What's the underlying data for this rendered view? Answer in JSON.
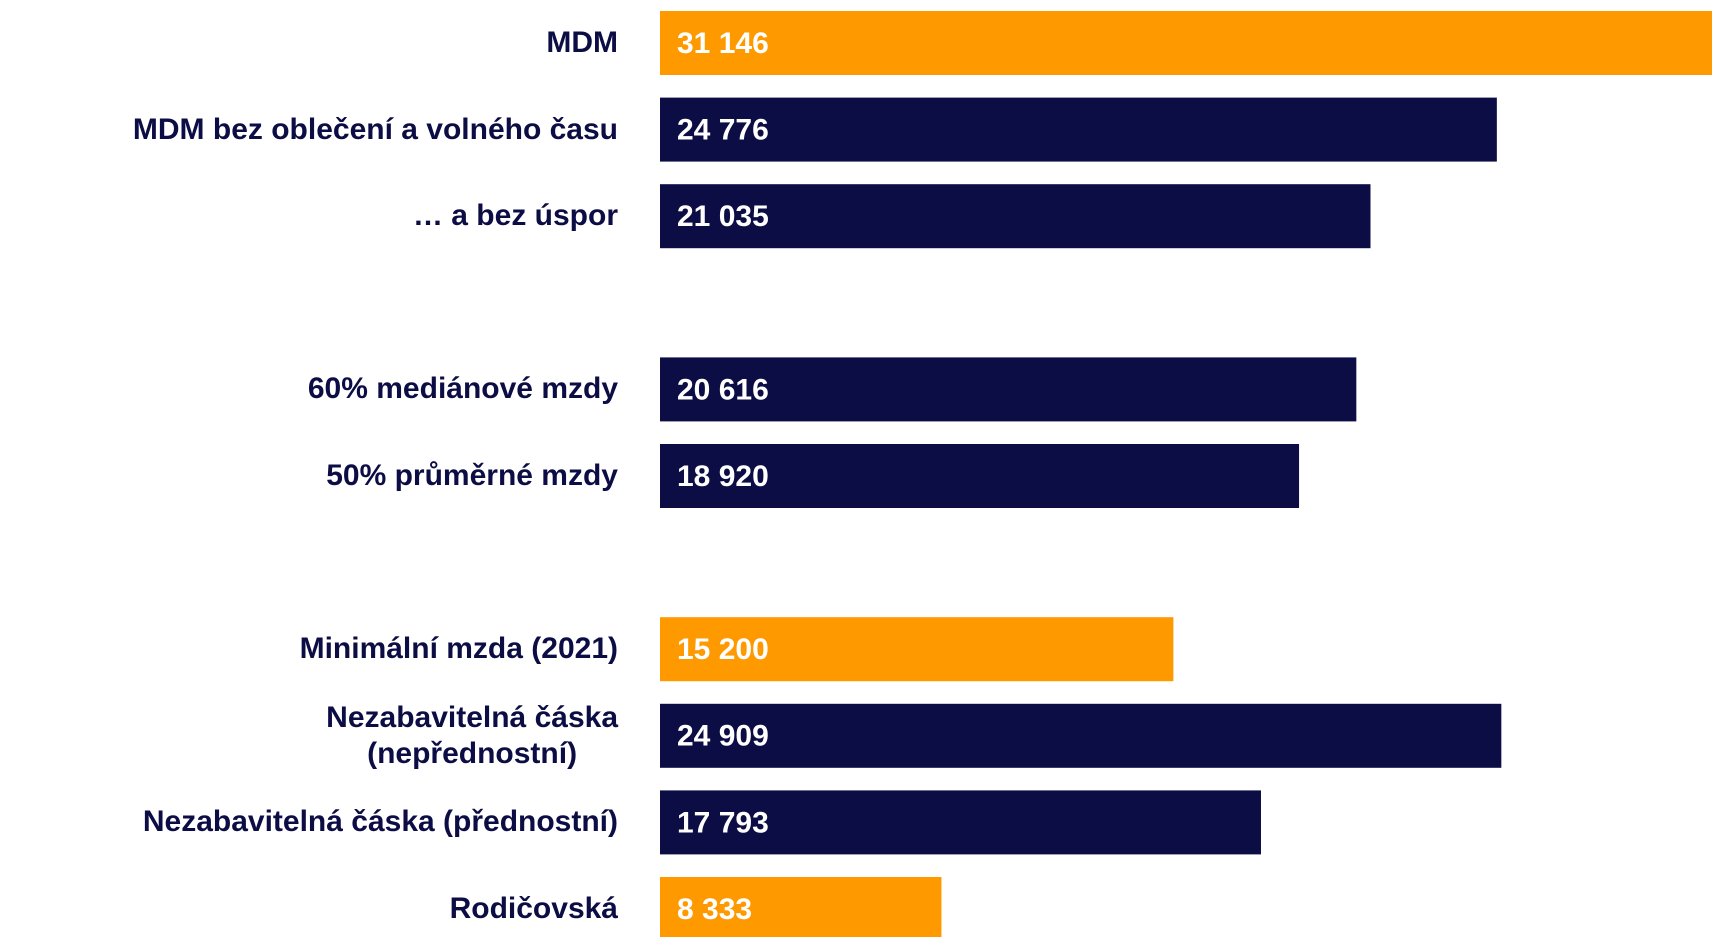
{
  "chart_data": {
    "type": "barh",
    "categories": [
      "MDM",
      "MDM bez oblečení a volného času",
      "… a bez úspor",
      null,
      "60% mediánové mzdy",
      "50% průměrné mzdy",
      null,
      "Minimální mzda (2021)",
      "Nezabavitelná čáska\n(nepřednostní)",
      "Nezabavitelná čáska (přednostní)",
      "Rodičovská"
    ],
    "values": [
      31146,
      24776,
      21035,
      null,
      20616,
      18920,
      null,
      15200,
      24909,
      17793,
      8333
    ],
    "value_labels": [
      "31 146",
      "24 776",
      "21 035",
      null,
      "20 616",
      "18 920",
      null,
      "15 200",
      "24 909",
      "17 793",
      "8 333"
    ],
    "colors": [
      "#ff9900",
      "#0d0d45",
      "#0d0d45",
      null,
      "#0d0d45",
      "#0d0d45",
      null,
      "#ff9900",
      "#0d0d45",
      "#0d0d45",
      "#ff9900"
    ]
  }
}
